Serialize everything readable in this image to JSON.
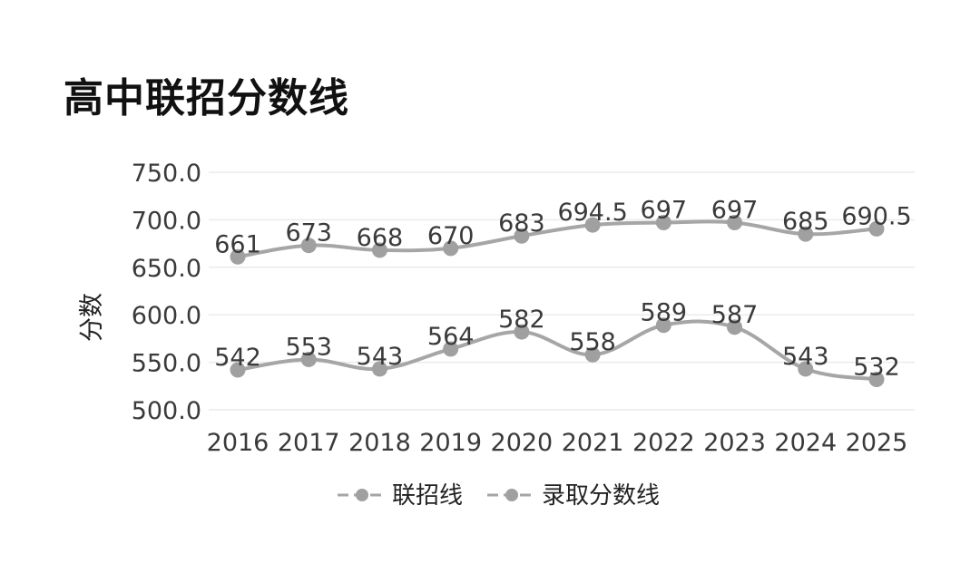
{
  "title": "高中联招分数线",
  "chart_data": {
    "type": "line",
    "title": "高中联招分数线",
    "xlabel": "",
    "ylabel": "分数",
    "ylim": [
      500,
      750
    ],
    "yticks": [
      "750.0",
      "700.0",
      "650.0",
      "600.0",
      "550.0",
      "500.0"
    ],
    "categories": [
      "2016",
      "2017",
      "2018",
      "2019",
      "2020",
      "2021",
      "2022",
      "2023",
      "2024",
      "2025"
    ],
    "series": [
      {
        "name": "联招线",
        "values": [
          661,
          673,
          668,
          670,
          683,
          694.5,
          697,
          697,
          685,
          690.5
        ],
        "labels": [
          "661",
          "673",
          "668",
          "670",
          "683",
          "694.5",
          "697",
          "697",
          "685",
          "690.5"
        ]
      },
      {
        "name": "录取分数线",
        "values": [
          542,
          553,
          543,
          564,
          582,
          558,
          589,
          587,
          543,
          532
        ],
        "labels": [
          "542",
          "553",
          "543",
          "564",
          "582",
          "558",
          "589",
          "587",
          "543",
          "532"
        ]
      }
    ],
    "grid": true,
    "legend": "bottom",
    "colors": {
      "line": "#a6a6a6",
      "marker": "#a0a0a0",
      "grid": "#ebebeb",
      "text": "#3a3a3a"
    }
  }
}
